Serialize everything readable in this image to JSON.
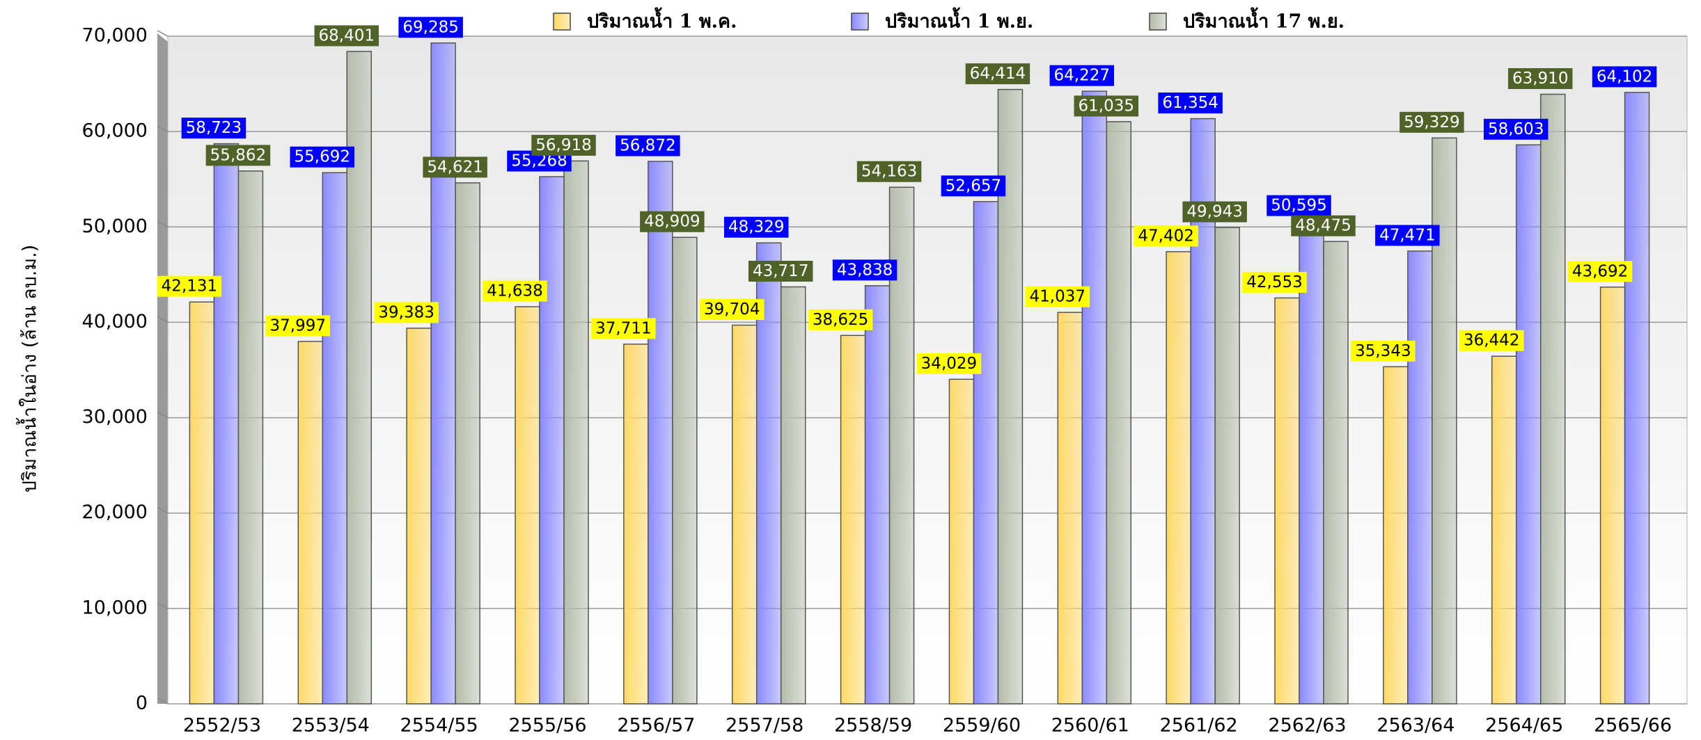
{
  "chart_data": {
    "type": "bar",
    "y_label": "ปริมาณน้ำในอ่าง (ล้าน ลบ.ม.)",
    "categories": [
      "2552/53",
      "2553/54",
      "2554/55",
      "2555/56",
      "2556/57",
      "2557/58",
      "2558/59",
      "2559/60",
      "2560/61",
      "2561/62",
      "2562/63",
      "2563/64",
      "2564/65",
      "2565/66"
    ],
    "series": [
      {
        "name": "ปริมาณน้ำ 1  พ.ค.",
        "color": "#ffd966",
        "label_bg": "#ffff00",
        "label_fg": "#000000",
        "values": [
          42131,
          37997,
          39383,
          41638,
          37711,
          39704,
          38625,
          34029,
          41037,
          47402,
          42553,
          35343,
          36442,
          43692
        ],
        "value_labels": [
          "42,131",
          "37,997",
          "39,383",
          "41,638",
          "37,711",
          "39,704",
          "38,625",
          "34,029",
          "41,037",
          "47,402",
          "42,553",
          "35,343",
          "36,442",
          "43,692"
        ]
      },
      {
        "name": "ปริมาณน้ำ 1  พ.ย.",
        "color": "#8a8aff",
        "label_bg": "#0000ff",
        "label_fg": "#ffffff",
        "values": [
          58723,
          55692,
          69285,
          55268,
          56872,
          48329,
          43838,
          52657,
          64227,
          61354,
          50595,
          47471,
          58603,
          64102
        ],
        "value_labels": [
          "58,723",
          "55,692",
          "69,285",
          "55,268",
          "56,872",
          "48,329",
          "43,838",
          "52,657",
          "64,227",
          "61,354",
          "50,595",
          "47,471",
          "58,603",
          "64,102"
        ]
      },
      {
        "name": "ปริมาณน้ำ 17 พ.ย.",
        "color": "#b4bcaa",
        "label_bg": "#4f6228",
        "label_fg": "#ffffff",
        "values": [
          55862,
          68401,
          54621,
          56918,
          48909,
          43717,
          54163,
          64414,
          61035,
          49943,
          48475,
          59329,
          63910,
          null
        ],
        "value_labels": [
          "55,862",
          "68,401",
          "54,621",
          "56,918",
          "48,909",
          "43,717",
          "54,163",
          "64,414",
          "61,035",
          "49,943",
          "48,475",
          "59,329",
          "63,910",
          null
        ]
      }
    ],
    "ylim": [
      0,
      70000
    ],
    "yticks": [
      0,
      {
        "value": 10000,
        "label": "10,000"
      },
      {
        "value": 20000,
        "label": "20,000"
      },
      {
        "value": 30000,
        "label": "30,000"
      },
      {
        "value": 40000,
        "label": "40,000"
      },
      {
        "value": 50000,
        "label": "50,000"
      },
      {
        "value": 60000,
        "label": "60,000"
      },
      {
        "value": 70000,
        "label": "70,000"
      }
    ],
    "grid": true,
    "legend": "top"
  }
}
